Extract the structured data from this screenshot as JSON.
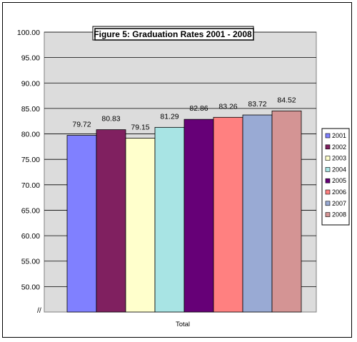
{
  "chart_data": {
    "type": "bar",
    "title": "Figure 5:  Graduation Rates 2001 - 2008",
    "categories": [
      "Total"
    ],
    "series": [
      {
        "name": "2001",
        "values": [
          79.72
        ],
        "color": "#8080ff"
      },
      {
        "name": "2002",
        "values": [
          80.83
        ],
        "color": "#802060"
      },
      {
        "name": "2003",
        "values": [
          79.15
        ],
        "color": "#ffffcc"
      },
      {
        "name": "2004",
        "values": [
          81.29
        ],
        "color": "#a8e4e4"
      },
      {
        "name": "2005",
        "values": [
          82.86
        ],
        "color": "#660077"
      },
      {
        "name": "2006",
        "values": [
          83.26
        ],
        "color": "#ff8080"
      },
      {
        "name": "2007",
        "values": [
          83.72
        ],
        "color": "#99aad4"
      },
      {
        "name": "2008",
        "values": [
          84.52
        ],
        "color": "#d49494"
      }
    ],
    "yticks": [
      "100.00",
      "95.00",
      "90.00",
      "85.00",
      "80.00",
      "75.00",
      "70.00",
      "65.00",
      "60.00",
      "55.00",
      "50.00"
    ],
    "axis_break_label": "//",
    "ylim": [
      45,
      100
    ],
    "grid": true,
    "legend": "right",
    "plot_background": "#dcdcdc"
  }
}
